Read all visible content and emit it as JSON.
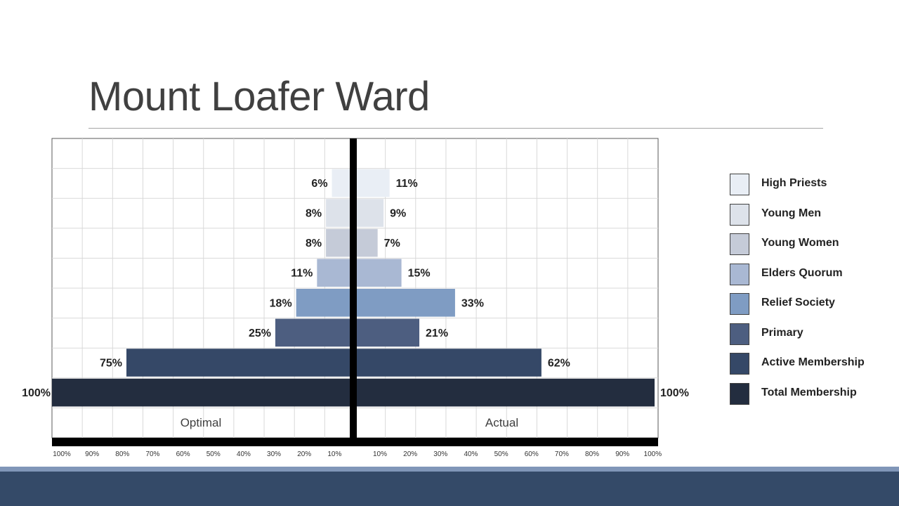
{
  "slide": {
    "title": "Mount Loafer Ward"
  },
  "chart_data": {
    "type": "bar",
    "orientation": "horizontal-diverging",
    "categories": [
      "High Priests",
      "Young Men",
      "Young Women",
      "Elders Quorum",
      "Relief Society",
      "Primary",
      "Active Membership",
      "Total Membership"
    ],
    "colors": [
      "#e9eef5",
      "#dde2ea",
      "#c5cbd8",
      "#a9b8d3",
      "#7f9cc3",
      "#4d5e80",
      "#354867",
      "#232d3f"
    ],
    "series": [
      {
        "name": "Optimal",
        "values": [
          6,
          8,
          8,
          11,
          18,
          25,
          75,
          100
        ],
        "labels": [
          "6%",
          "8%",
          "8%",
          "11%",
          "18%",
          "25%",
          "75%",
          "100%"
        ]
      },
      {
        "name": "Actual",
        "values": [
          11,
          9,
          7,
          15,
          33,
          21,
          62,
          100
        ],
        "labels": [
          "11%",
          "9%",
          "7%",
          "15%",
          "33%",
          "21%",
          "62%",
          "100%"
        ]
      }
    ],
    "left_ticks": [
      "100%",
      "90%",
      "80%",
      "70%",
      "60%",
      "50%",
      "40%",
      "30%",
      "20%",
      "10%"
    ],
    "right_ticks": [
      "10%",
      "20%",
      "30%",
      "40%",
      "50%",
      "60%",
      "70%",
      "80%",
      "90%",
      "100%"
    ],
    "xlim": [
      0,
      100
    ],
    "grid": true,
    "legend_position": "right"
  }
}
